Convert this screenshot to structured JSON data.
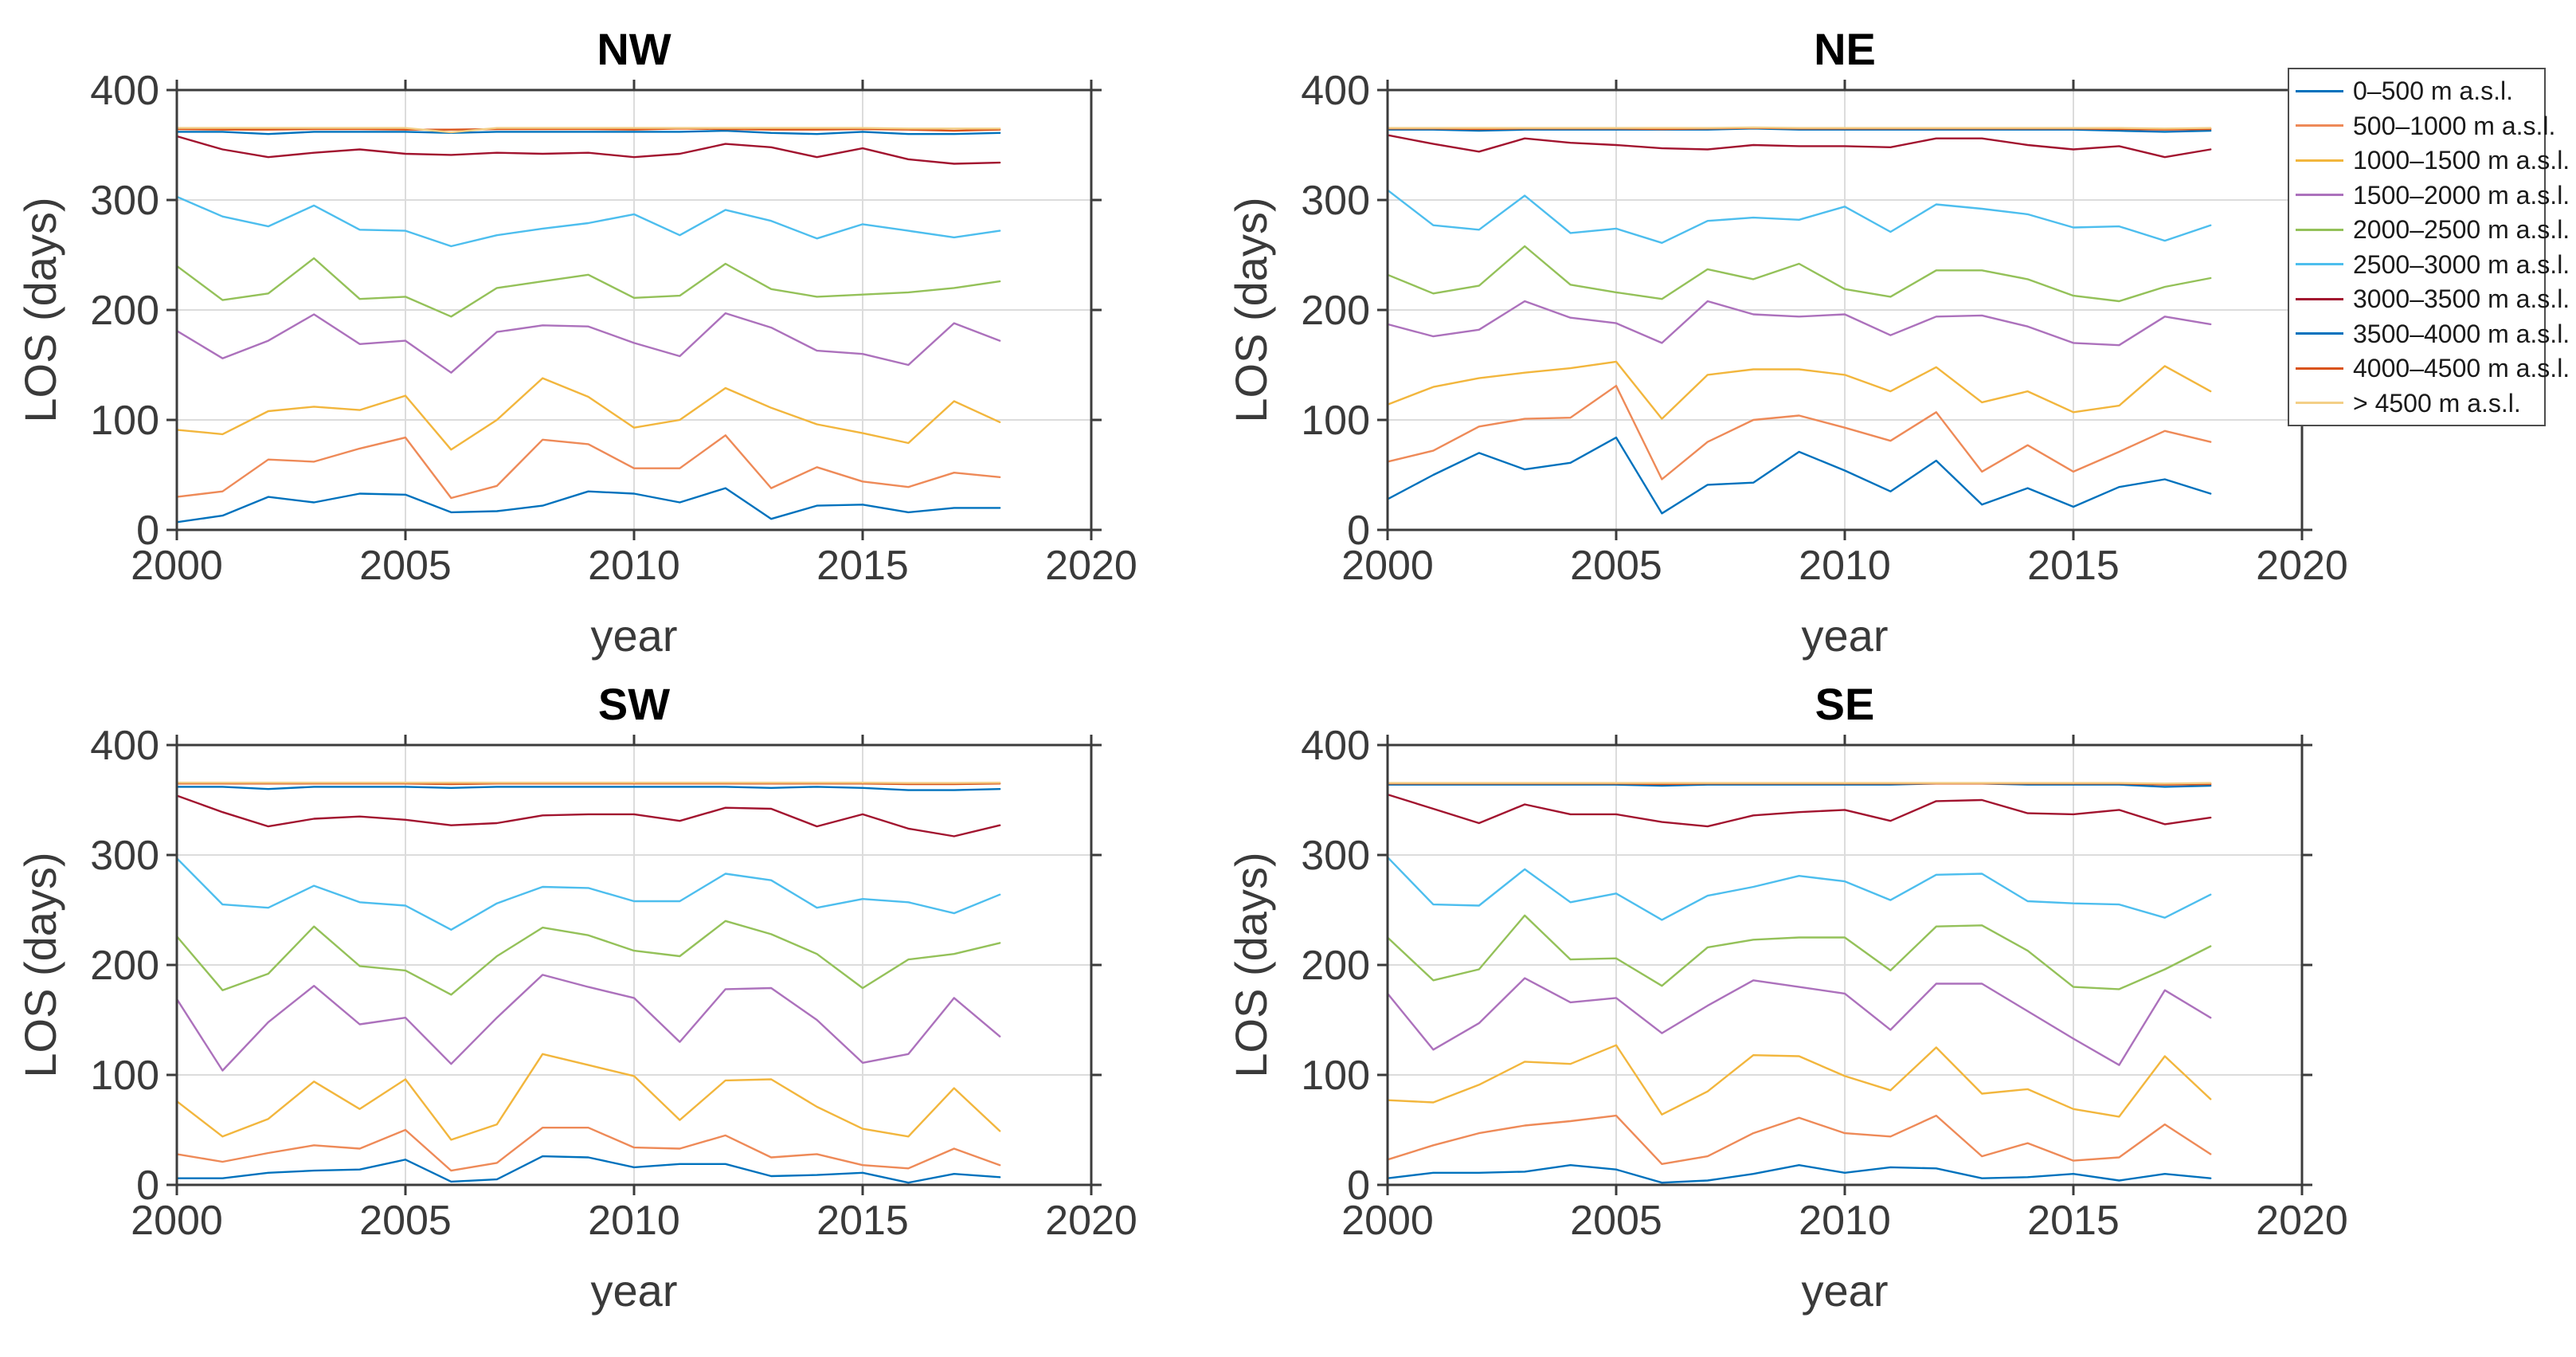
{
  "figure": {
    "background": "#ffffff"
  },
  "axes": {
    "xlabel": "year",
    "ylabel": "LOS (days)",
    "xticks": [
      2000,
      2005,
      2010,
      2015,
      2020
    ],
    "yticks": [
      0,
      100,
      200,
      300,
      400
    ],
    "xlim": [
      2000,
      2020
    ],
    "ylim": [
      0,
      400
    ],
    "grid": true
  },
  "legend": {
    "position": "top-right",
    "items": [
      {
        "label": "0–500 m a.s.l.",
        "color": "#0072BD"
      },
      {
        "label": "500–1000 m a.s.l.",
        "color": "#EE8A58"
      },
      {
        "label": "1000–1500 m a.s.l.",
        "color": "#F2B63D"
      },
      {
        "label": "1500–2000 m a.s.l.",
        "color": "#AC71BC"
      },
      {
        "label": "2000–2500 m a.s.l.",
        "color": "#94C159"
      },
      {
        "label": "2500–3000 m a.s.l.",
        "color": "#4DBEEE"
      },
      {
        "label": "3000–3500 m a.s.l.",
        "color": "#A2142F"
      },
      {
        "label": "3500–4000 m a.s.l.",
        "color": "#0072BD"
      },
      {
        "label": "4000–4500 m a.s.l.",
        "color": "#D95319"
      },
      {
        "label": "> 4500 m a.s.l.",
        "color": "#F3CF87"
      }
    ]
  },
  "chart_data": [
    {
      "type": "line",
      "title": "NW",
      "xlabel": "year",
      "ylabel": "LOS (days)",
      "xlim": [
        2000,
        2020
      ],
      "ylim": [
        0,
        400
      ],
      "x": [
        2000,
        2001,
        2002,
        2003,
        2004,
        2005,
        2006,
        2007,
        2008,
        2009,
        2010,
        2011,
        2012,
        2013,
        2014,
        2015,
        2016,
        2017,
        2018
      ],
      "series": [
        {
          "name": "0–500 m a.s.l.",
          "values": [
            7,
            13,
            30,
            25,
            33,
            32,
            16,
            17,
            22,
            35,
            33,
            25,
            38,
            10,
            22,
            23,
            16,
            20,
            20
          ]
        },
        {
          "name": "500–1000 m a.s.l.",
          "values": [
            30,
            35,
            64,
            62,
            74,
            84,
            29,
            40,
            82,
            78,
            56,
            56,
            86,
            38,
            57,
            44,
            39,
            52,
            48
          ]
        },
        {
          "name": "1000–1500 m a.s.l.",
          "values": [
            91,
            87,
            108,
            112,
            109,
            122,
            73,
            100,
            138,
            121,
            93,
            100,
            129,
            111,
            96,
            88,
            79,
            117,
            98
          ]
        },
        {
          "name": "1500–2000 m a.s.l.",
          "values": [
            181,
            156,
            172,
            196,
            169,
            172,
            143,
            180,
            186,
            185,
            170,
            158,
            197,
            184,
            163,
            160,
            150,
            188,
            172
          ]
        },
        {
          "name": "2000–2500 m a.s.l.",
          "values": [
            240,
            209,
            215,
            247,
            210,
            212,
            194,
            220,
            226,
            232,
            211,
            213,
            242,
            219,
            212,
            214,
            216,
            220,
            226
          ]
        },
        {
          "name": "2500–3000 m a.s.l.",
          "values": [
            303,
            285,
            276,
            295,
            273,
            272,
            258,
            268,
            274,
            279,
            287,
            268,
            291,
            281,
            265,
            278,
            272,
            266,
            272
          ]
        },
        {
          "name": "3000–3500 m a.s.l.",
          "values": [
            358,
            346,
            339,
            343,
            346,
            342,
            341,
            343,
            342,
            343,
            339,
            342,
            351,
            348,
            339,
            347,
            337,
            333,
            334
          ]
        },
        {
          "name": "3500–4000 m a.s.l.",
          "values": [
            362,
            362,
            360,
            362,
            362,
            362,
            361,
            362,
            362,
            362,
            362,
            362,
            363,
            361,
            360,
            362,
            360,
            360,
            361
          ]
        },
        {
          "name": "4000–4500 m a.s.l.",
          "values": [
            364.5,
            364,
            364,
            364.5,
            364.5,
            364,
            364,
            364.5,
            364.5,
            364.5,
            364,
            365,
            364.5,
            364,
            364,
            364.5,
            364,
            363,
            364
          ]
        },
        {
          "name": "> 4500 m a.s.l.",
          "values": [
            365.5,
            365.5,
            365.5,
            365.5,
            365.5,
            365.5,
            361.5,
            365.5,
            365.5,
            365.5,
            365.5,
            365.5,
            365.5,
            365.5,
            365.5,
            365.5,
            365,
            365,
            365
          ]
        }
      ]
    },
    {
      "type": "line",
      "title": "NE",
      "xlabel": "year",
      "ylabel": "LOS (days)",
      "xlim": [
        2000,
        2020
      ],
      "ylim": [
        0,
        400
      ],
      "x": [
        2000,
        2001,
        2002,
        2003,
        2004,
        2005,
        2006,
        2007,
        2008,
        2009,
        2010,
        2011,
        2012,
        2013,
        2014,
        2015,
        2016,
        2017,
        2018
      ],
      "series": [
        {
          "name": "0–500 m a.s.l.",
          "values": [
            28,
            50,
            70,
            55,
            61,
            84,
            15,
            41,
            43,
            71,
            54,
            35,
            63,
            23,
            38,
            21,
            39,
            46,
            33
          ]
        },
        {
          "name": "500–1000 m a.s.l.",
          "values": [
            62,
            72,
            94,
            101,
            102,
            131,
            46,
            80,
            100,
            104,
            93,
            81,
            107,
            53,
            77,
            53,
            71,
            90,
            80
          ]
        },
        {
          "name": "1000–1500 m a.s.l.",
          "values": [
            114,
            130,
            138,
            143,
            147,
            153,
            101,
            141,
            146,
            146,
            141,
            126,
            148,
            116,
            126,
            107,
            113,
            149,
            126
          ]
        },
        {
          "name": "1500–2000 m a.s.l.",
          "values": [
            187,
            176,
            182,
            208,
            193,
            188,
            170,
            208,
            196,
            194,
            196,
            177,
            194,
            195,
            185,
            170,
            168,
            194,
            187
          ]
        },
        {
          "name": "2000–2500 m a.s.l.",
          "values": [
            232,
            215,
            222,
            258,
            223,
            216,
            210,
            237,
            228,
            242,
            219,
            212,
            236,
            236,
            228,
            213,
            208,
            221,
            229
          ]
        },
        {
          "name": "2500–3000 m a.s.l.",
          "values": [
            309,
            277,
            273,
            304,
            270,
            274,
            261,
            281,
            284,
            282,
            294,
            271,
            296,
            292,
            287,
            275,
            276,
            263,
            277
          ]
        },
        {
          "name": "3000–3500 m a.s.l.",
          "values": [
            359,
            351,
            344,
            356,
            352,
            350,
            347,
            346,
            350,
            349,
            349,
            348,
            356,
            356,
            350,
            346,
            349,
            339,
            346
          ]
        },
        {
          "name": "3500–4000 m a.s.l.",
          "values": [
            364,
            364,
            363,
            364,
            364,
            364,
            364,
            364,
            365,
            364,
            364,
            364,
            364,
            364,
            364,
            364,
            363,
            362,
            363
          ]
        },
        {
          "name": "4000–4500 m a.s.l.",
          "values": [
            365,
            365,
            364.5,
            365,
            365,
            365,
            364.5,
            365,
            365.5,
            365,
            365,
            365,
            365,
            365,
            365,
            365,
            364.5,
            364,
            364.5
          ]
        },
        {
          "name": "> 4500 m a.s.l.",
          "values": [
            365.5,
            365.5,
            365.5,
            365.5,
            365.5,
            365.5,
            365.5,
            365.5,
            366,
            365.5,
            365.5,
            365.5,
            365.5,
            365.5,
            365.5,
            365.5,
            365.5,
            365,
            365.5
          ]
        }
      ]
    },
    {
      "type": "line",
      "title": "SW",
      "xlabel": "year",
      "ylabel": "LOS (days)",
      "xlim": [
        2000,
        2020
      ],
      "ylim": [
        0,
        400
      ],
      "x": [
        2000,
        2001,
        2002,
        2003,
        2004,
        2005,
        2006,
        2007,
        2008,
        2009,
        2010,
        2011,
        2012,
        2013,
        2014,
        2015,
        2016,
        2017,
        2018
      ],
      "series": [
        {
          "name": "0–500 m a.s.l.",
          "values": [
            6,
            6,
            11,
            13,
            14,
            23,
            3,
            5,
            26,
            25,
            16,
            19,
            19,
            8,
            9,
            11,
            2,
            10,
            7
          ]
        },
        {
          "name": "500–1000 m a.s.l.",
          "values": [
            28,
            21,
            29,
            36,
            33,
            50,
            13,
            20,
            52,
            52,
            34,
            33,
            45,
            25,
            28,
            18,
            15,
            33,
            18
          ]
        },
        {
          "name": "1000–1500 m a.s.l.",
          "values": [
            76,
            44,
            60,
            94,
            69,
            96,
            41,
            55,
            119,
            109,
            99,
            59,
            95,
            96,
            71,
            51,
            44,
            88,
            49
          ]
        },
        {
          "name": "1500–2000 m a.s.l.",
          "values": [
            169,
            104,
            148,
            181,
            146,
            152,
            110,
            152,
            191,
            180,
            170,
            130,
            178,
            179,
            150,
            111,
            119,
            170,
            135
          ]
        },
        {
          "name": "2000–2500 m a.s.l.",
          "values": [
            226,
            177,
            192,
            235,
            199,
            195,
            173,
            208,
            234,
            227,
            213,
            208,
            240,
            228,
            210,
            179,
            205,
            210,
            220
          ]
        },
        {
          "name": "2500–3000 m a.s.l.",
          "values": [
            297,
            255,
            252,
            272,
            257,
            254,
            232,
            256,
            271,
            270,
            258,
            258,
            283,
            277,
            252,
            260,
            257,
            247,
            264
          ]
        },
        {
          "name": "3000–3500 m a.s.l.",
          "values": [
            354,
            339,
            326,
            333,
            335,
            332,
            327,
            329,
            336,
            337,
            337,
            331,
            343,
            342,
            326,
            337,
            324,
            317,
            327
          ]
        },
        {
          "name": "3500–4000 m a.s.l.",
          "values": [
            362,
            362,
            360,
            362,
            362,
            362,
            361,
            362,
            362,
            362,
            362,
            362,
            362,
            361,
            362,
            361,
            359,
            359,
            360
          ]
        },
        {
          "name": "4000–4500 m a.s.l.",
          "values": [
            365,
            365,
            365,
            365,
            365,
            365,
            364.5,
            365,
            365,
            365,
            365,
            365,
            365,
            365,
            365,
            365,
            364.5,
            364.5,
            365
          ]
        },
        {
          "name": "> 4500 m a.s.l.",
          "values": [
            365.8,
            365.8,
            365.8,
            365.8,
            365.8,
            365.8,
            365.8,
            365.8,
            365.8,
            365.8,
            365.8,
            365.8,
            365.8,
            365.8,
            365.8,
            365.8,
            365.5,
            365.5,
            365.8
          ]
        }
      ]
    },
    {
      "type": "line",
      "title": "SE",
      "xlabel": "year",
      "ylabel": "LOS (days)",
      "xlim": [
        2000,
        2020
      ],
      "ylim": [
        0,
        400
      ],
      "x": [
        2000,
        2001,
        2002,
        2003,
        2004,
        2005,
        2006,
        2007,
        2008,
        2009,
        2010,
        2011,
        2012,
        2013,
        2014,
        2015,
        2016,
        2017,
        2018
      ],
      "series": [
        {
          "name": "0–500 m a.s.l.",
          "values": [
            6,
            11,
            11,
            12,
            18,
            14,
            2,
            4,
            10,
            18,
            11,
            16,
            15,
            6,
            7,
            10,
            4,
            10,
            6
          ]
        },
        {
          "name": "500–1000 m a.s.l.",
          "values": [
            23,
            36,
            47,
            54,
            58,
            63,
            19,
            26,
            47,
            61,
            47,
            44,
            63,
            26,
            38,
            22,
            25,
            55,
            28
          ]
        },
        {
          "name": "1000–1500 m a.s.l.",
          "values": [
            77,
            75,
            91,
            112,
            110,
            127,
            64,
            85,
            118,
            117,
            99,
            86,
            125,
            83,
            87,
            69,
            62,
            117,
            78
          ]
        },
        {
          "name": "1500–2000 m a.s.l.",
          "values": [
            174,
            123,
            147,
            188,
            166,
            170,
            138,
            163,
            186,
            180,
            174,
            141,
            183,
            183,
            158,
            133,
            109,
            177,
            152
          ]
        },
        {
          "name": "2000–2500 m a.s.l.",
          "values": [
            225,
            186,
            196,
            245,
            205,
            206,
            181,
            216,
            223,
            225,
            225,
            195,
            235,
            236,
            213,
            180,
            178,
            196,
            217
          ]
        },
        {
          "name": "2500–3000 m a.s.l.",
          "values": [
            298,
            255,
            254,
            287,
            257,
            265,
            241,
            263,
            271,
            281,
            276,
            259,
            282,
            283,
            258,
            256,
            255,
            243,
            264
          ]
        },
        {
          "name": "3000–3500 m a.s.l.",
          "values": [
            355,
            342,
            329,
            346,
            337,
            337,
            330,
            326,
            336,
            339,
            341,
            331,
            349,
            350,
            338,
            337,
            341,
            328,
            334
          ]
        },
        {
          "name": "3500–4000 m a.s.l.",
          "values": [
            364,
            364,
            364,
            364,
            364,
            364,
            363,
            364,
            364,
            364,
            364,
            364,
            365,
            365,
            364,
            364,
            364,
            362,
            363
          ]
        },
        {
          "name": "4000–4500 m a.s.l.",
          "values": [
            365,
            365,
            365,
            365,
            365,
            365,
            364.5,
            365,
            365,
            365,
            365,
            365,
            365,
            365,
            365,
            365,
            365,
            364,
            364.5
          ]
        },
        {
          "name": "> 4500 m a.s.l.",
          "values": [
            365.5,
            365.5,
            365.5,
            365.5,
            365.5,
            365.5,
            365.5,
            365.5,
            365.5,
            365.5,
            365.5,
            365.5,
            365.5,
            365.5,
            365.5,
            365.5,
            365.5,
            365,
            365.5
          ]
        }
      ]
    }
  ]
}
